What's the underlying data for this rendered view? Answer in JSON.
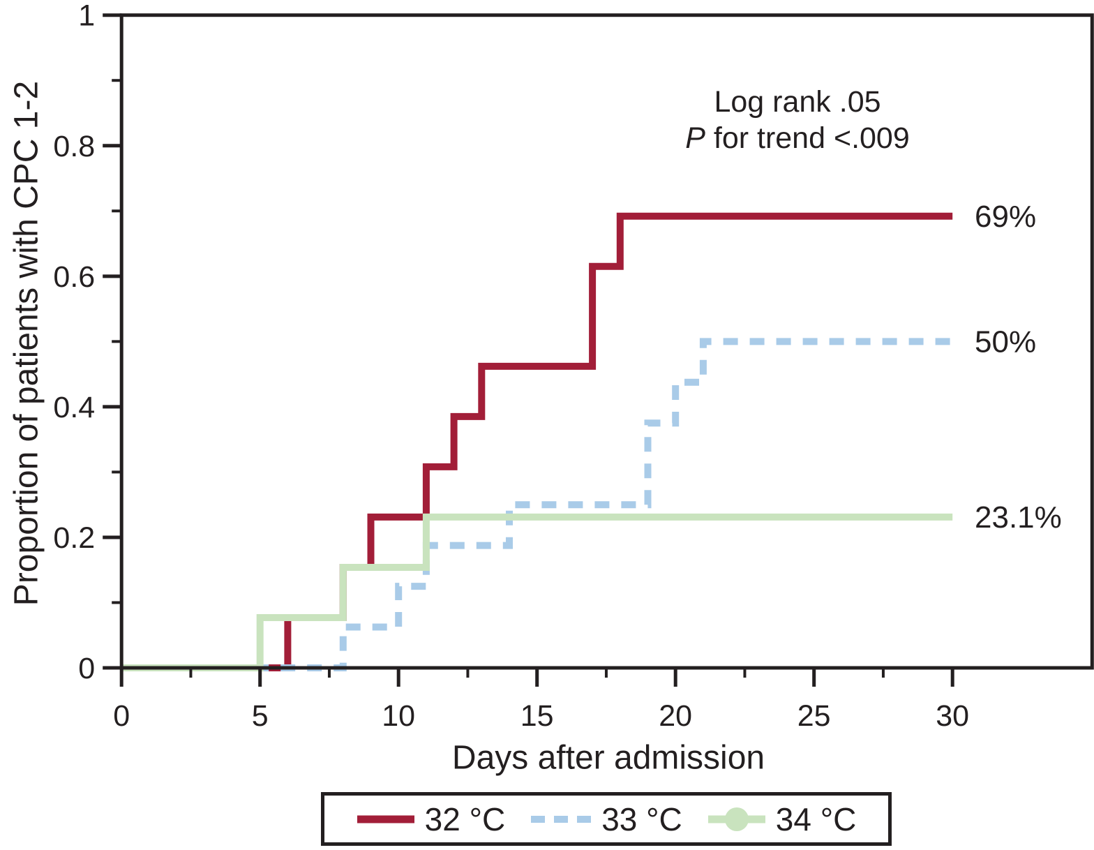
{
  "colors": {
    "ink": "#231f20",
    "red_32c": "#a21e38",
    "blue_33c": "#a9cbe8",
    "green_34c": "#c9e3be",
    "background": "#ffffff"
  },
  "chart_data": {
    "type": "line",
    "step_interpolation": "step-after",
    "title": "",
    "xlabel": "Days after admission",
    "ylabel": "Proportion of patients with CPC 1-2",
    "xlim": [
      0,
      35
    ],
    "ylim": [
      0,
      1
    ],
    "x_end": 30,
    "x_ticks_major": [
      0,
      5,
      10,
      15,
      20,
      25,
      30
    ],
    "x_tick_labels": [
      "0",
      "5",
      "10",
      "15",
      "20",
      "25",
      "30"
    ],
    "x_ticks_minor": [
      2.5,
      7.5,
      12.5,
      17.5,
      22.5,
      27.5
    ],
    "y_ticks_major": [
      0,
      0.2,
      0.4,
      0.6,
      0.8,
      1
    ],
    "y_tick_labels": [
      "0",
      "0.2",
      "0.4",
      "0.6",
      "0.8",
      "1"
    ],
    "y_ticks_minor": [
      0.1,
      0.3,
      0.5,
      0.7,
      0.9
    ],
    "grid": false,
    "legend_position": "bottom",
    "annotation": {
      "line1": "Log rank .05",
      "line2_italic": "P",
      "line2_rest": " for trend <.009"
    },
    "series": [
      {
        "id": "32c",
        "name": "32 °C",
        "color": "#a21e38",
        "line_style": "solid",
        "end_label": "69%",
        "points": [
          [
            0,
            0
          ],
          [
            6,
            0.077
          ],
          [
            8,
            0.154
          ],
          [
            9,
            0.231
          ],
          [
            11,
            0.308
          ],
          [
            12,
            0.385
          ],
          [
            13,
            0.462
          ],
          [
            17,
            0.615
          ],
          [
            18,
            0.692
          ]
        ]
      },
      {
        "id": "33c",
        "name": "33 °C",
        "color": "#a9cbe8",
        "line_style": "dashed",
        "end_label": "50%",
        "points": [
          [
            0,
            0
          ],
          [
            8,
            0.0625
          ],
          [
            10,
            0.125
          ],
          [
            11,
            0.1875
          ],
          [
            14,
            0.25
          ],
          [
            19,
            0.375
          ],
          [
            20,
            0.4375
          ],
          [
            21,
            0.5
          ]
        ]
      },
      {
        "id": "34c",
        "name": "34 °C",
        "color": "#c9e3be",
        "line_style": "solid",
        "legend_marker": "circle",
        "end_label": "23.1%",
        "points": [
          [
            0,
            0
          ],
          [
            5,
            0.077
          ],
          [
            8,
            0.154
          ],
          [
            11,
            0.231
          ]
        ]
      }
    ]
  }
}
